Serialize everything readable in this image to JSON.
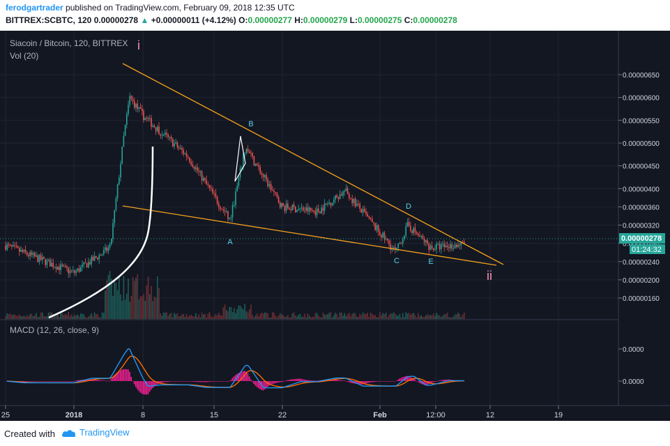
{
  "header": {
    "author": "ferodgartrader",
    "published": "published on TradingView.com, February 09, 2018 12:35 UTC",
    "symbol_line": "BITTREX:SCBTC, 120",
    "last": "0.00000278",
    "change": "+0.00000011 (+4.12%)",
    "open_label": "O:",
    "open": "0.00000277",
    "high_label": "H:",
    "high": "0.00000279",
    "low_label": "L:",
    "low": "0.00000275",
    "close_label": "C:",
    "close": "0.00000278"
  },
  "chart_labels": {
    "title": "Siacoin / Bitcoin, 120, BITTREX",
    "volume_label": "Vol (20)",
    "macd_label": "MACD (12, 26, close, 9)",
    "price_tag": "0.00000278",
    "countdown_tag": "01:24:32",
    "wave_i": "i",
    "wave_ii": "ii"
  },
  "footer": {
    "created_with": "Created with",
    "brand": "TradingView"
  },
  "colors": {
    "background": "#131722",
    "up": "#26a69a",
    "down": "#ef5350",
    "trendline": "#f7a21b",
    "annotation": "#59d3e6",
    "macd": "#2196f3",
    "signal": "#ff6d00",
    "histogram": "#ff1f99"
  },
  "chart_data": {
    "type": "candlestick",
    "title": "Siacoin / Bitcoin, 120, BITTREX",
    "y_axis": {
      "ticks": [
        "0.00000650",
        "0.00000600",
        "0.00000550",
        "0.00000500",
        "0.00000450",
        "0.00000400",
        "0.00000360",
        "0.00000320",
        "0.00000280",
        "0.00000240",
        "0.00000200",
        "0.00000160"
      ],
      "range": [
        1.35e-06,
        6.9e-06
      ]
    },
    "x_axis": {
      "ticks": [
        "25",
        "2018",
        "8",
        "15",
        "22",
        "Feb",
        "12:00",
        "12",
        "19"
      ]
    },
    "approx_close_path": [
      {
        "x": "25",
        "y": 2.75e-06
      },
      {
        "x": "2018",
        "y": 2.15e-06
      },
      {
        "x": "Jan 4",
        "y": 2.7e-06
      },
      {
        "x": "Jan 5",
        "y": 5.2e-06
      },
      {
        "x": "Jan 6",
        "y": 6e-06
      },
      {
        "x": "Jan 8",
        "y": 5.6e-06
      },
      {
        "x": "Jan 12",
        "y": 4.7e-06
      },
      {
        "x": "Jan 16",
        "y": 3.3e-06
      },
      {
        "x": "Jan 18",
        "y": 4.9e-06
      },
      {
        "x": "Jan 22",
        "y": 3.6e-06
      },
      {
        "x": "Jan 26",
        "y": 3.5e-06
      },
      {
        "x": "Jan 29",
        "y": 3.95e-06
      },
      {
        "x": "Feb 3",
        "y": 2.6e-06
      },
      {
        "x": "Feb 5",
        "y": 3.2e-06
      },
      {
        "x": "Feb 8",
        "y": 2.7e-06
      },
      {
        "x": "Feb 9",
        "y": 2.78e-06
      }
    ],
    "last_price": 2.78e-06,
    "wave_labels": [
      "A",
      "B",
      "C",
      "D",
      "E"
    ],
    "macd": {
      "label": "MACD (12, 26, close, 9)",
      "ticks": [
        "0.0000",
        "0.0000"
      ]
    }
  }
}
